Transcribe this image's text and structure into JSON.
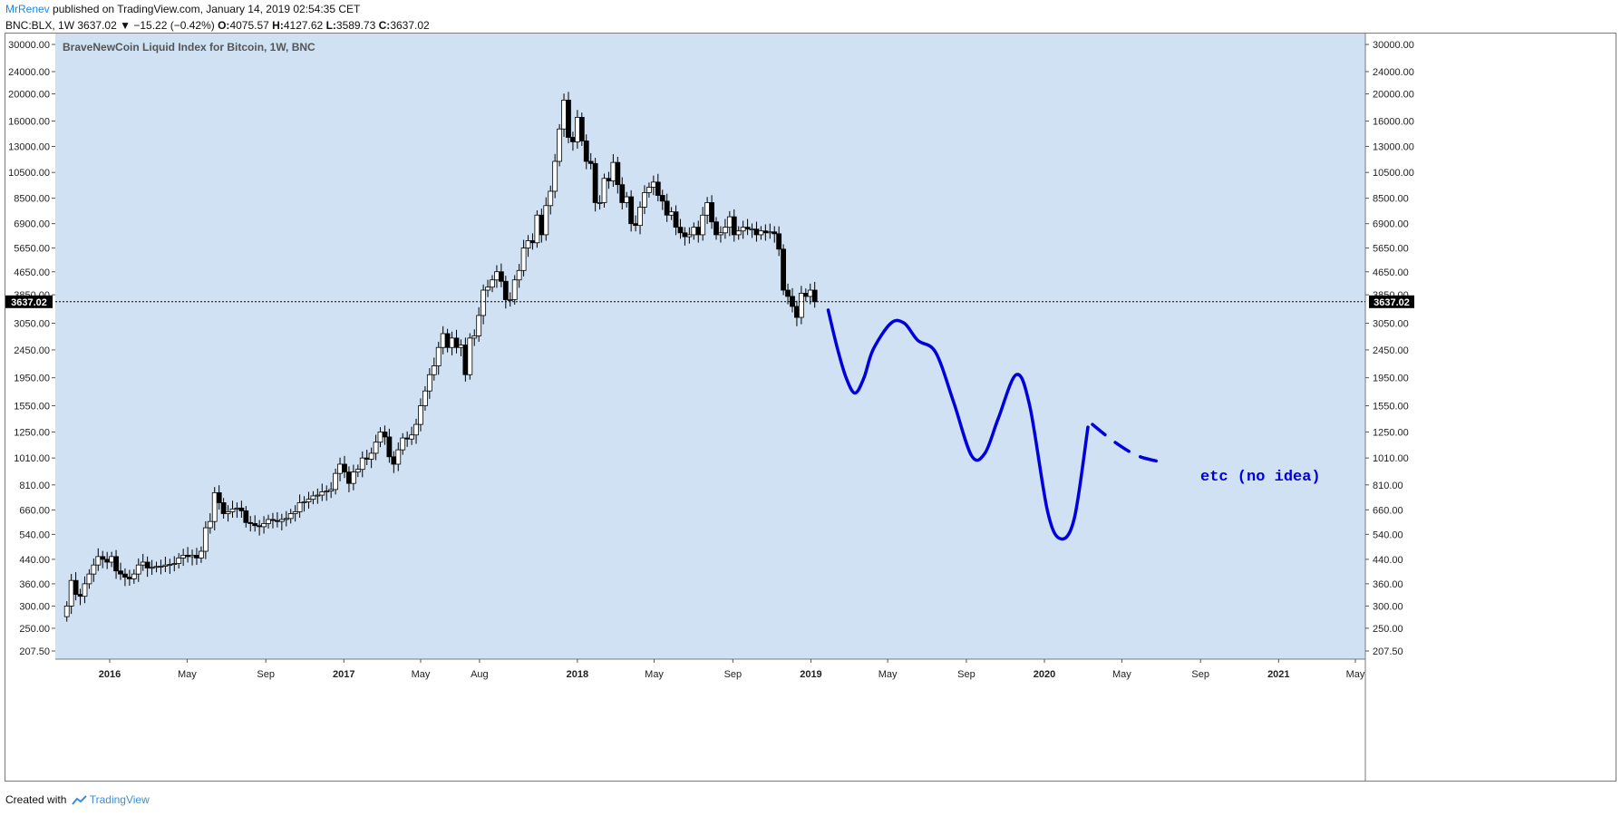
{
  "header": {
    "author": "MrRenev",
    "published": "published on TradingView.com, January 14, 2019 02:54:35 CET",
    "symbol": "BNC:BLX, 1W",
    "last": "3637.02",
    "change": "−15.22 (−0.42%)",
    "o_label": "O:",
    "o_val": "4075.57",
    "h_label": "H:",
    "h_val": "4127.62",
    "l_label": "L:",
    "l_val": "3589.73",
    "c_label": "C:",
    "c_val": "3637.02"
  },
  "footer": {
    "created": "Created with",
    "brand": "TradingView"
  },
  "colors": {
    "plot_bg": "#cfe1f2",
    "candle_up": "#ffffff",
    "candle_down": "#000000",
    "annotation": "#0000dd",
    "price_line": "#000000",
    "title_text": "#555555"
  },
  "chart_data": {
    "type": "candlestick",
    "title": "BraveNewCoin Liquid Index for Bitcoin, 1W, BNC",
    "scale": "log",
    "y_ticks": [
      "30000.00",
      "24000.00",
      "20000.00",
      "16000.00",
      "13000.00",
      "10500.00",
      "8500.00",
      "6900.00",
      "5650.00",
      "4650.00",
      "3850.00",
      "3050.00",
      "2450.00",
      "1950.00",
      "1550.00",
      "1250.00",
      "1010.00",
      "810.00",
      "660.00",
      "540.00",
      "440.00",
      "360.00",
      "300.00",
      "250.00",
      "207.50"
    ],
    "y_tick_values": [
      30000,
      24000,
      20000,
      16000,
      13000,
      10500,
      8500,
      6900,
      5650,
      4650,
      3850,
      3050,
      2450,
      1950,
      1550,
      1250,
      1010,
      810,
      660,
      540,
      440,
      360,
      300,
      250,
      207.5
    ],
    "x_ticks": [
      {
        "label": "2016",
        "date": "2016-01-01",
        "bold": true
      },
      {
        "label": "May",
        "date": "2016-05-01",
        "bold": false
      },
      {
        "label": "Sep",
        "date": "2016-09-01",
        "bold": false
      },
      {
        "label": "2017",
        "date": "2017-01-01",
        "bold": true
      },
      {
        "label": "May",
        "date": "2017-05-01",
        "bold": false
      },
      {
        "label": "Aug",
        "date": "2017-08-01",
        "bold": false
      },
      {
        "label": "2018",
        "date": "2018-01-01",
        "bold": true
      },
      {
        "label": "May",
        "date": "2018-05-01",
        "bold": false
      },
      {
        "label": "Sep",
        "date": "2018-09-01",
        "bold": false
      },
      {
        "label": "2019",
        "date": "2019-01-01",
        "bold": true
      },
      {
        "label": "May",
        "date": "2019-05-01",
        "bold": false
      },
      {
        "label": "Sep",
        "date": "2019-09-01",
        "bold": false
      },
      {
        "label": "2020",
        "date": "2020-01-01",
        "bold": true
      },
      {
        "label": "May",
        "date": "2020-05-01",
        "bold": false
      },
      {
        "label": "Sep",
        "date": "2020-09-01",
        "bold": false
      },
      {
        "label": "2021",
        "date": "2021-01-01",
        "bold": true
      },
      {
        "label": "May",
        "date": "2021-05-01",
        "bold": false
      }
    ],
    "current_price": 3637.02,
    "current_price_label": "3637.02",
    "weekly_closes": [
      {
        "date": "2015-10-26",
        "close": 300
      },
      {
        "date": "2015-11-02",
        "close": 370
      },
      {
        "date": "2015-11-09",
        "close": 330
      },
      {
        "date": "2015-11-16",
        "close": 325
      },
      {
        "date": "2015-11-23",
        "close": 360
      },
      {
        "date": "2015-11-30",
        "close": 390
      },
      {
        "date": "2015-12-07",
        "close": 420
      },
      {
        "date": "2015-12-14",
        "close": 450
      },
      {
        "date": "2015-12-21",
        "close": 440
      },
      {
        "date": "2015-12-28",
        "close": 430
      },
      {
        "date": "2016-01-04",
        "close": 450
      },
      {
        "date": "2016-01-11",
        "close": 400
      },
      {
        "date": "2016-01-18",
        "close": 390
      },
      {
        "date": "2016-01-25",
        "close": 380
      },
      {
        "date": "2016-02-01",
        "close": 375
      },
      {
        "date": "2016-02-08",
        "close": 390
      },
      {
        "date": "2016-02-15",
        "close": 420
      },
      {
        "date": "2016-02-22",
        "close": 430
      },
      {
        "date": "2016-02-29",
        "close": 410
      },
      {
        "date": "2016-03-07",
        "close": 412
      },
      {
        "date": "2016-03-14",
        "close": 415
      },
      {
        "date": "2016-03-21",
        "close": 416
      },
      {
        "date": "2016-03-28",
        "close": 420
      },
      {
        "date": "2016-04-04",
        "close": 422
      },
      {
        "date": "2016-04-11",
        "close": 425
      },
      {
        "date": "2016-04-18",
        "close": 445
      },
      {
        "date": "2016-04-25",
        "close": 455
      },
      {
        "date": "2016-05-02",
        "close": 450
      },
      {
        "date": "2016-05-09",
        "close": 455
      },
      {
        "date": "2016-05-16",
        "close": 445
      },
      {
        "date": "2016-05-23",
        "close": 470
      },
      {
        "date": "2016-05-30",
        "close": 570
      },
      {
        "date": "2016-06-06",
        "close": 600
      },
      {
        "date": "2016-06-13",
        "close": 760
      },
      {
        "date": "2016-06-20",
        "close": 700
      },
      {
        "date": "2016-06-27",
        "close": 640
      },
      {
        "date": "2016-07-04",
        "close": 650
      },
      {
        "date": "2016-07-11",
        "close": 665
      },
      {
        "date": "2016-07-18",
        "close": 670
      },
      {
        "date": "2016-07-25",
        "close": 655
      },
      {
        "date": "2016-08-01",
        "close": 595
      },
      {
        "date": "2016-08-08",
        "close": 590
      },
      {
        "date": "2016-08-15",
        "close": 580
      },
      {
        "date": "2016-08-22",
        "close": 575
      },
      {
        "date": "2016-08-29",
        "close": 590
      },
      {
        "date": "2016-09-05",
        "close": 610
      },
      {
        "date": "2016-09-12",
        "close": 605
      },
      {
        "date": "2016-09-19",
        "close": 600
      },
      {
        "date": "2016-09-26",
        "close": 610
      },
      {
        "date": "2016-10-03",
        "close": 615
      },
      {
        "date": "2016-10-10",
        "close": 640
      },
      {
        "date": "2016-10-17",
        "close": 650
      },
      {
        "date": "2016-10-24",
        "close": 700
      },
      {
        "date": "2016-10-31",
        "close": 705
      },
      {
        "date": "2016-11-07",
        "close": 720
      },
      {
        "date": "2016-11-14",
        "close": 740
      },
      {
        "date": "2016-11-21",
        "close": 745
      },
      {
        "date": "2016-11-28",
        "close": 765
      },
      {
        "date": "2016-12-05",
        "close": 770
      },
      {
        "date": "2016-12-12",
        "close": 780
      },
      {
        "date": "2016-12-19",
        "close": 890
      },
      {
        "date": "2016-12-26",
        "close": 960
      },
      {
        "date": "2017-01-02",
        "close": 900
      },
      {
        "date": "2017-01-09",
        "close": 820
      },
      {
        "date": "2017-01-16",
        "close": 900
      },
      {
        "date": "2017-01-23",
        "close": 920
      },
      {
        "date": "2017-01-30",
        "close": 1010
      },
      {
        "date": "2017-02-06",
        "close": 1000
      },
      {
        "date": "2017-02-13",
        "close": 1050
      },
      {
        "date": "2017-02-20",
        "close": 1150
      },
      {
        "date": "2017-02-27",
        "close": 1250
      },
      {
        "date": "2017-03-06",
        "close": 1200
      },
      {
        "date": "2017-03-13",
        "close": 1020
      },
      {
        "date": "2017-03-20",
        "close": 960
      },
      {
        "date": "2017-03-27",
        "close": 1080
      },
      {
        "date": "2017-04-03",
        "close": 1190
      },
      {
        "date": "2017-04-10",
        "close": 1180
      },
      {
        "date": "2017-04-17",
        "close": 1220
      },
      {
        "date": "2017-04-24",
        "close": 1330
      },
      {
        "date": "2017-05-01",
        "close": 1550
      },
      {
        "date": "2017-05-08",
        "close": 1750
      },
      {
        "date": "2017-05-15",
        "close": 2000
      },
      {
        "date": "2017-05-22",
        "close": 2150
      },
      {
        "date": "2017-05-29",
        "close": 2500
      },
      {
        "date": "2017-06-05",
        "close": 2800
      },
      {
        "date": "2017-06-12",
        "close": 2500
      },
      {
        "date": "2017-06-19",
        "close": 2700
      },
      {
        "date": "2017-06-26",
        "close": 2500
      },
      {
        "date": "2017-07-03",
        "close": 2550
      },
      {
        "date": "2017-07-10",
        "close": 2000
      },
      {
        "date": "2017-07-17",
        "close": 2700
      },
      {
        "date": "2017-07-24",
        "close": 2750
      },
      {
        "date": "2017-07-31",
        "close": 3250
      },
      {
        "date": "2017-08-07",
        "close": 4000
      },
      {
        "date": "2017-08-14",
        "close": 4100
      },
      {
        "date": "2017-08-21",
        "close": 4350
      },
      {
        "date": "2017-08-28",
        "close": 4650
      },
      {
        "date": "2017-09-04",
        "close": 4300
      },
      {
        "date": "2017-09-11",
        "close": 3700
      },
      {
        "date": "2017-09-18",
        "close": 3700
      },
      {
        "date": "2017-09-25",
        "close": 4350
      },
      {
        "date": "2017-10-02",
        "close": 4700
      },
      {
        "date": "2017-10-09",
        "close": 5650
      },
      {
        "date": "2017-10-16",
        "close": 6000
      },
      {
        "date": "2017-10-23",
        "close": 5900
      },
      {
        "date": "2017-10-30",
        "close": 7400
      },
      {
        "date": "2017-11-06",
        "close": 6300
      },
      {
        "date": "2017-11-13",
        "close": 8000
      },
      {
        "date": "2017-11-20",
        "close": 9000
      },
      {
        "date": "2017-11-27",
        "close": 11500
      },
      {
        "date": "2017-12-04",
        "close": 15000
      },
      {
        "date": "2017-12-11",
        "close": 19000
      },
      {
        "date": "2017-12-18",
        "close": 14000
      },
      {
        "date": "2017-12-25",
        "close": 13500
      },
      {
        "date": "2018-01-01",
        "close": 16500
      },
      {
        "date": "2018-01-08",
        "close": 13600
      },
      {
        "date": "2018-01-15",
        "close": 11500
      },
      {
        "date": "2018-01-22",
        "close": 11300
      },
      {
        "date": "2018-01-29",
        "close": 8200
      },
      {
        "date": "2018-02-05",
        "close": 8200
      },
      {
        "date": "2018-02-12",
        "close": 10000
      },
      {
        "date": "2018-02-19",
        "close": 9800
      },
      {
        "date": "2018-02-26",
        "close": 11400
      },
      {
        "date": "2018-03-05",
        "close": 9500
      },
      {
        "date": "2018-03-12",
        "close": 8200
      },
      {
        "date": "2018-03-19",
        "close": 8600
      },
      {
        "date": "2018-03-26",
        "close": 6900
      },
      {
        "date": "2018-04-02",
        "close": 6800
      },
      {
        "date": "2018-04-09",
        "close": 7900
      },
      {
        "date": "2018-04-16",
        "close": 8900
      },
      {
        "date": "2018-04-23",
        "close": 9300
      },
      {
        "date": "2018-04-30",
        "close": 9700
      },
      {
        "date": "2018-05-07",
        "close": 8700
      },
      {
        "date": "2018-05-14",
        "close": 8300
      },
      {
        "date": "2018-05-21",
        "close": 7400
      },
      {
        "date": "2018-05-28",
        "close": 7600
      },
      {
        "date": "2018-06-04",
        "close": 6700
      },
      {
        "date": "2018-06-11",
        "close": 6400
      },
      {
        "date": "2018-06-18",
        "close": 6200
      },
      {
        "date": "2018-06-25",
        "close": 6300
      },
      {
        "date": "2018-07-02",
        "close": 6700
      },
      {
        "date": "2018-07-09",
        "close": 6300
      },
      {
        "date": "2018-07-16",
        "close": 7400
      },
      {
        "date": "2018-07-23",
        "close": 8200
      },
      {
        "date": "2018-07-30",
        "close": 7000
      },
      {
        "date": "2018-08-06",
        "close": 6300
      },
      {
        "date": "2018-08-13",
        "close": 6400
      },
      {
        "date": "2018-08-20",
        "close": 6700
      },
      {
        "date": "2018-08-27",
        "close": 7300
      },
      {
        "date": "2018-09-03",
        "close": 6300
      },
      {
        "date": "2018-09-10",
        "close": 6500
      },
      {
        "date": "2018-09-17",
        "close": 6700
      },
      {
        "date": "2018-09-24",
        "close": 6600
      },
      {
        "date": "2018-10-01",
        "close": 6600
      },
      {
        "date": "2018-10-08",
        "close": 6300
      },
      {
        "date": "2018-10-15",
        "close": 6500
      },
      {
        "date": "2018-10-22",
        "close": 6400
      },
      {
        "date": "2018-10-29",
        "close": 6450
      },
      {
        "date": "2018-11-05",
        "close": 6350
      },
      {
        "date": "2018-11-12",
        "close": 5600
      },
      {
        "date": "2018-11-19",
        "close": 4000
      },
      {
        "date": "2018-11-26",
        "close": 3800
      },
      {
        "date": "2018-12-03",
        "close": 3500
      },
      {
        "date": "2018-12-10",
        "close": 3200
      },
      {
        "date": "2018-12-17",
        "close": 3900
      },
      {
        "date": "2018-12-24",
        "close": 3800
      },
      {
        "date": "2018-12-31",
        "close": 4000
      },
      {
        "date": "2019-01-07",
        "close": 3637
      }
    ],
    "annotation": {
      "text": "etc (no idea)",
      "curve": [
        {
          "date": "2019-01-28",
          "price": 3400
        },
        {
          "date": "2019-02-11",
          "price": 2500
        },
        {
          "date": "2019-02-25",
          "price": 1950
        },
        {
          "date": "2019-03-11",
          "price": 1720
        },
        {
          "date": "2019-03-25",
          "price": 1950
        },
        {
          "date": "2019-04-08",
          "price": 2450
        },
        {
          "date": "2019-05-06",
          "price": 3050
        },
        {
          "date": "2019-05-27",
          "price": 3050
        },
        {
          "date": "2019-06-17",
          "price": 2650
        },
        {
          "date": "2019-07-15",
          "price": 2400
        },
        {
          "date": "2019-08-12",
          "price": 1600
        },
        {
          "date": "2019-09-09",
          "price": 1030
        },
        {
          "date": "2019-09-30",
          "price": 1050
        },
        {
          "date": "2019-10-21",
          "price": 1400
        },
        {
          "date": "2019-11-18",
          "price": 2000
        },
        {
          "date": "2019-12-09",
          "price": 1550
        },
        {
          "date": "2020-01-06",
          "price": 650
        },
        {
          "date": "2020-01-27",
          "price": 520
        },
        {
          "date": "2020-02-17",
          "price": 620
        },
        {
          "date": "2020-03-09",
          "price": 1300
        }
      ],
      "dashes": [
        {
          "date": "2020-03-16",
          "price": 1330
        },
        {
          "date": "2020-04-20",
          "price": 1150
        },
        {
          "date": "2020-05-25",
          "price": 1030
        },
        {
          "date": "2020-06-29",
          "price": 980
        }
      ]
    }
  }
}
